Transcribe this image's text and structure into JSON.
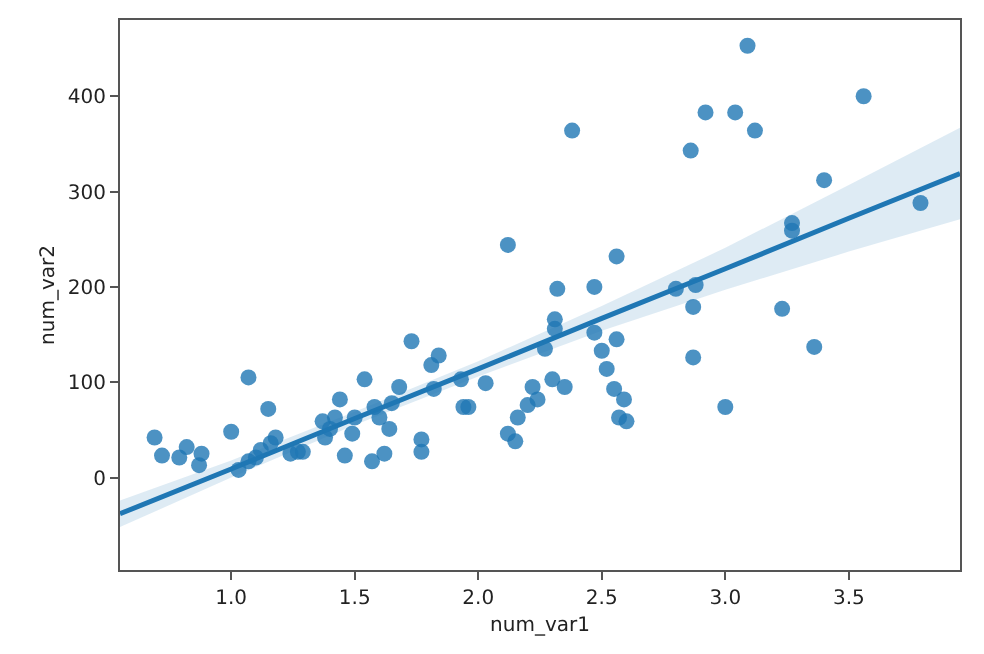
{
  "chart_data": {
    "type": "scatter",
    "xlabel": "num_var1",
    "ylabel": "num_var2",
    "xlim": [
      0.55,
      3.95
    ],
    "ylim": [
      -97,
      480
    ],
    "xticks": [
      {
        "value": 1.0,
        "label": "1.0"
      },
      1.5,
      {
        "value": 2.0,
        "label": "2.0"
      },
      2.5,
      {
        "value": 3.0,
        "label": "3.0"
      },
      3.5
    ],
    "yticks": [
      0,
      100,
      200,
      300,
      400
    ],
    "series": [
      {
        "marker": "circle",
        "color": "#1f77b4",
        "x": [
          0.69,
          0.72,
          0.79,
          0.82,
          0.88,
          0.87,
          1.0,
          1.03,
          1.07,
          1.07,
          1.1,
          1.12,
          1.15,
          1.18,
          1.16,
          1.24,
          1.27,
          1.29,
          1.37,
          1.38,
          1.4,
          1.42,
          1.44,
          1.46,
          1.49,
          1.5,
          1.54,
          1.57,
          1.58,
          1.6,
          1.62,
          1.64,
          1.65,
          1.68,
          1.73,
          1.77,
          1.77,
          1.81,
          1.84,
          1.82,
          1.93,
          1.94,
          1.96,
          2.03,
          2.12,
          2.15,
          2.16,
          2.2,
          2.22,
          2.24,
          2.27,
          2.31,
          2.32,
          2.31,
          2.47,
          2.47,
          2.5,
          2.52,
          2.56,
          2.55,
          2.59,
          2.57,
          2.6,
          2.3,
          2.35,
          2.8,
          2.88,
          2.87,
          2.87,
          3.0,
          3.23,
          3.36,
          2.38,
          2.56,
          2.86,
          2.92,
          3.04,
          3.09,
          3.12,
          3.27,
          3.27,
          3.4,
          3.56,
          3.79,
          2.12
        ],
        "values": [
          42,
          23,
          21,
          32,
          25,
          13,
          48,
          8,
          105,
          17,
          21,
          29,
          72,
          42,
          36,
          25,
          27,
          27,
          59,
          42,
          51,
          63,
          82,
          23,
          46,
          63,
          103,
          17,
          74,
          63,
          25,
          51,
          78,
          95,
          143,
          40,
          27,
          118,
          128,
          93,
          103,
          74,
          74,
          99,
          46,
          38,
          63,
          76,
          95,
          82,
          135,
          156,
          198,
          166,
          200,
          152,
          133,
          114,
          145,
          93,
          82,
          63,
          59,
          103,
          95,
          198,
          202,
          179,
          126,
          74,
          177,
          137,
          364,
          232,
          343,
          383,
          383,
          453,
          364,
          267,
          259,
          312,
          400,
          288,
          244
        ]
      },
      {
        "type": "line",
        "color": "#1f77b4",
        "line_style": "solid",
        "x": [
          0.55,
          1.0,
          1.5,
          2.0,
          2.5,
          3.0,
          3.5,
          3.95
        ],
        "values": [
          -38,
          9,
          62,
          114,
          167,
          219,
          272,
          319
        ],
        "lower": [
          -52,
          0,
          55,
          106,
          154,
          197,
          237,
          271
        ],
        "upper": [
          -24,
          18,
          69,
          122,
          180,
          241,
          307,
          367
        ]
      }
    ]
  }
}
